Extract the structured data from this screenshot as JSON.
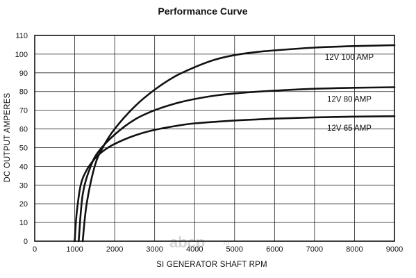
{
  "chart_data": {
    "type": "line",
    "title": "Performance Curve",
    "xlabel": "SI GENERATOR SHAFT RPM",
    "ylabel": "DC OUTPUT AMPERES",
    "xlim": [
      0,
      9000
    ],
    "ylim": [
      0,
      110
    ],
    "xticks": [
      0,
      1000,
      2000,
      3000,
      4000,
      5000,
      6000,
      7000,
      8000,
      9000
    ],
    "yticks": [
      0,
      10,
      20,
      30,
      40,
      50,
      60,
      70,
      80,
      90,
      100,
      110
    ],
    "grid": true,
    "legend": "inline labels at right",
    "series": [
      {
        "name": "12V 100 AMP",
        "x": [
          1200,
          1300,
          1500,
          1700,
          2000,
          2500,
          3000,
          3500,
          4000,
          4500,
          5000,
          5500,
          6000,
          7000,
          8000,
          9000
        ],
        "y": [
          0,
          20,
          40,
          50,
          60,
          72,
          81,
          88,
          93,
          97,
          99.5,
          101,
          102,
          103.5,
          104.3,
          104.8
        ]
      },
      {
        "name": "12V 80 AMP",
        "x": [
          1100,
          1200,
          1400,
          1600,
          2000,
          2500,
          3000,
          3500,
          4000,
          4500,
          5000,
          6000,
          7000,
          8000,
          9000
        ],
        "y": [
          0,
          25,
          40,
          48,
          57,
          65,
          70,
          73.5,
          76,
          77.8,
          79,
          80.5,
          81.5,
          82,
          82.3
        ]
      },
      {
        "name": "12V 65 AMP",
        "x": [
          1000,
          1050,
          1150,
          1300,
          1500,
          1700,
          2000,
          2500,
          3000,
          3500,
          4000,
          5000,
          6000,
          7000,
          8000,
          9000
        ],
        "y": [
          0,
          15,
          30,
          38,
          44,
          48,
          52,
          56.5,
          59.5,
          61.5,
          63,
          64.5,
          65.5,
          66.2,
          66.6,
          66.8
        ]
      }
    ]
  },
  "watermark": {
    "text": "abcp",
    "suffix": ".ru"
  }
}
